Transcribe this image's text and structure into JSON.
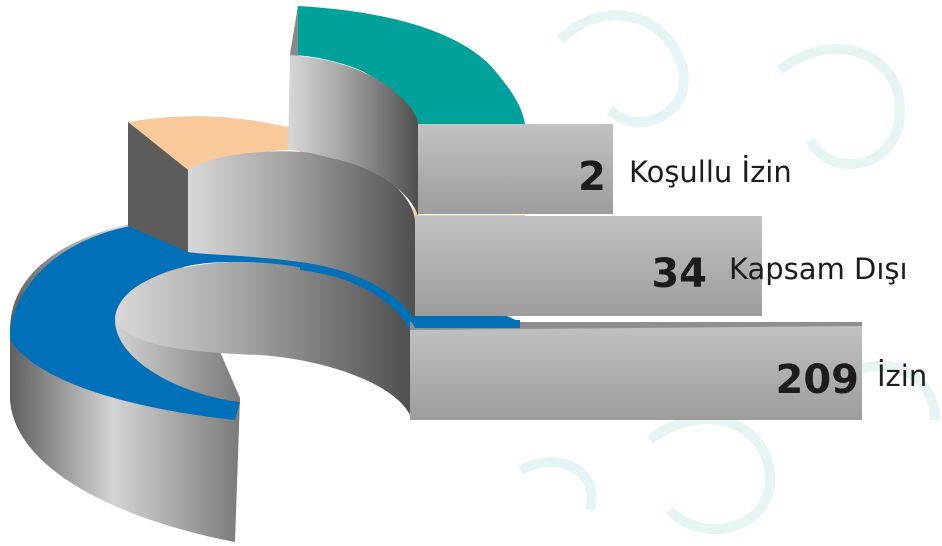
{
  "chart_data": {
    "type": "pie",
    "title": "",
    "series": [
      {
        "name": "Koşullu İzin",
        "value": 2,
        "color": "#00a19a"
      },
      {
        "name": "Kapsam Dışı",
        "value": 34,
        "color": "#f9c89b"
      },
      {
        "name": "İzin",
        "value": 209,
        "color": "#0071b8"
      }
    ],
    "labels": [
      {
        "value": "2",
        "name": "Koşullu İzin"
      },
      {
        "value": "34",
        "name": "Kapsam Dışı"
      },
      {
        "value": "209",
        "name": "İzin"
      }
    ],
    "colors": {
      "side_gray_dark": "#6e6e6e",
      "side_gray_light": "#c8c8c8",
      "background_ornament": "#e6f4f4"
    }
  }
}
